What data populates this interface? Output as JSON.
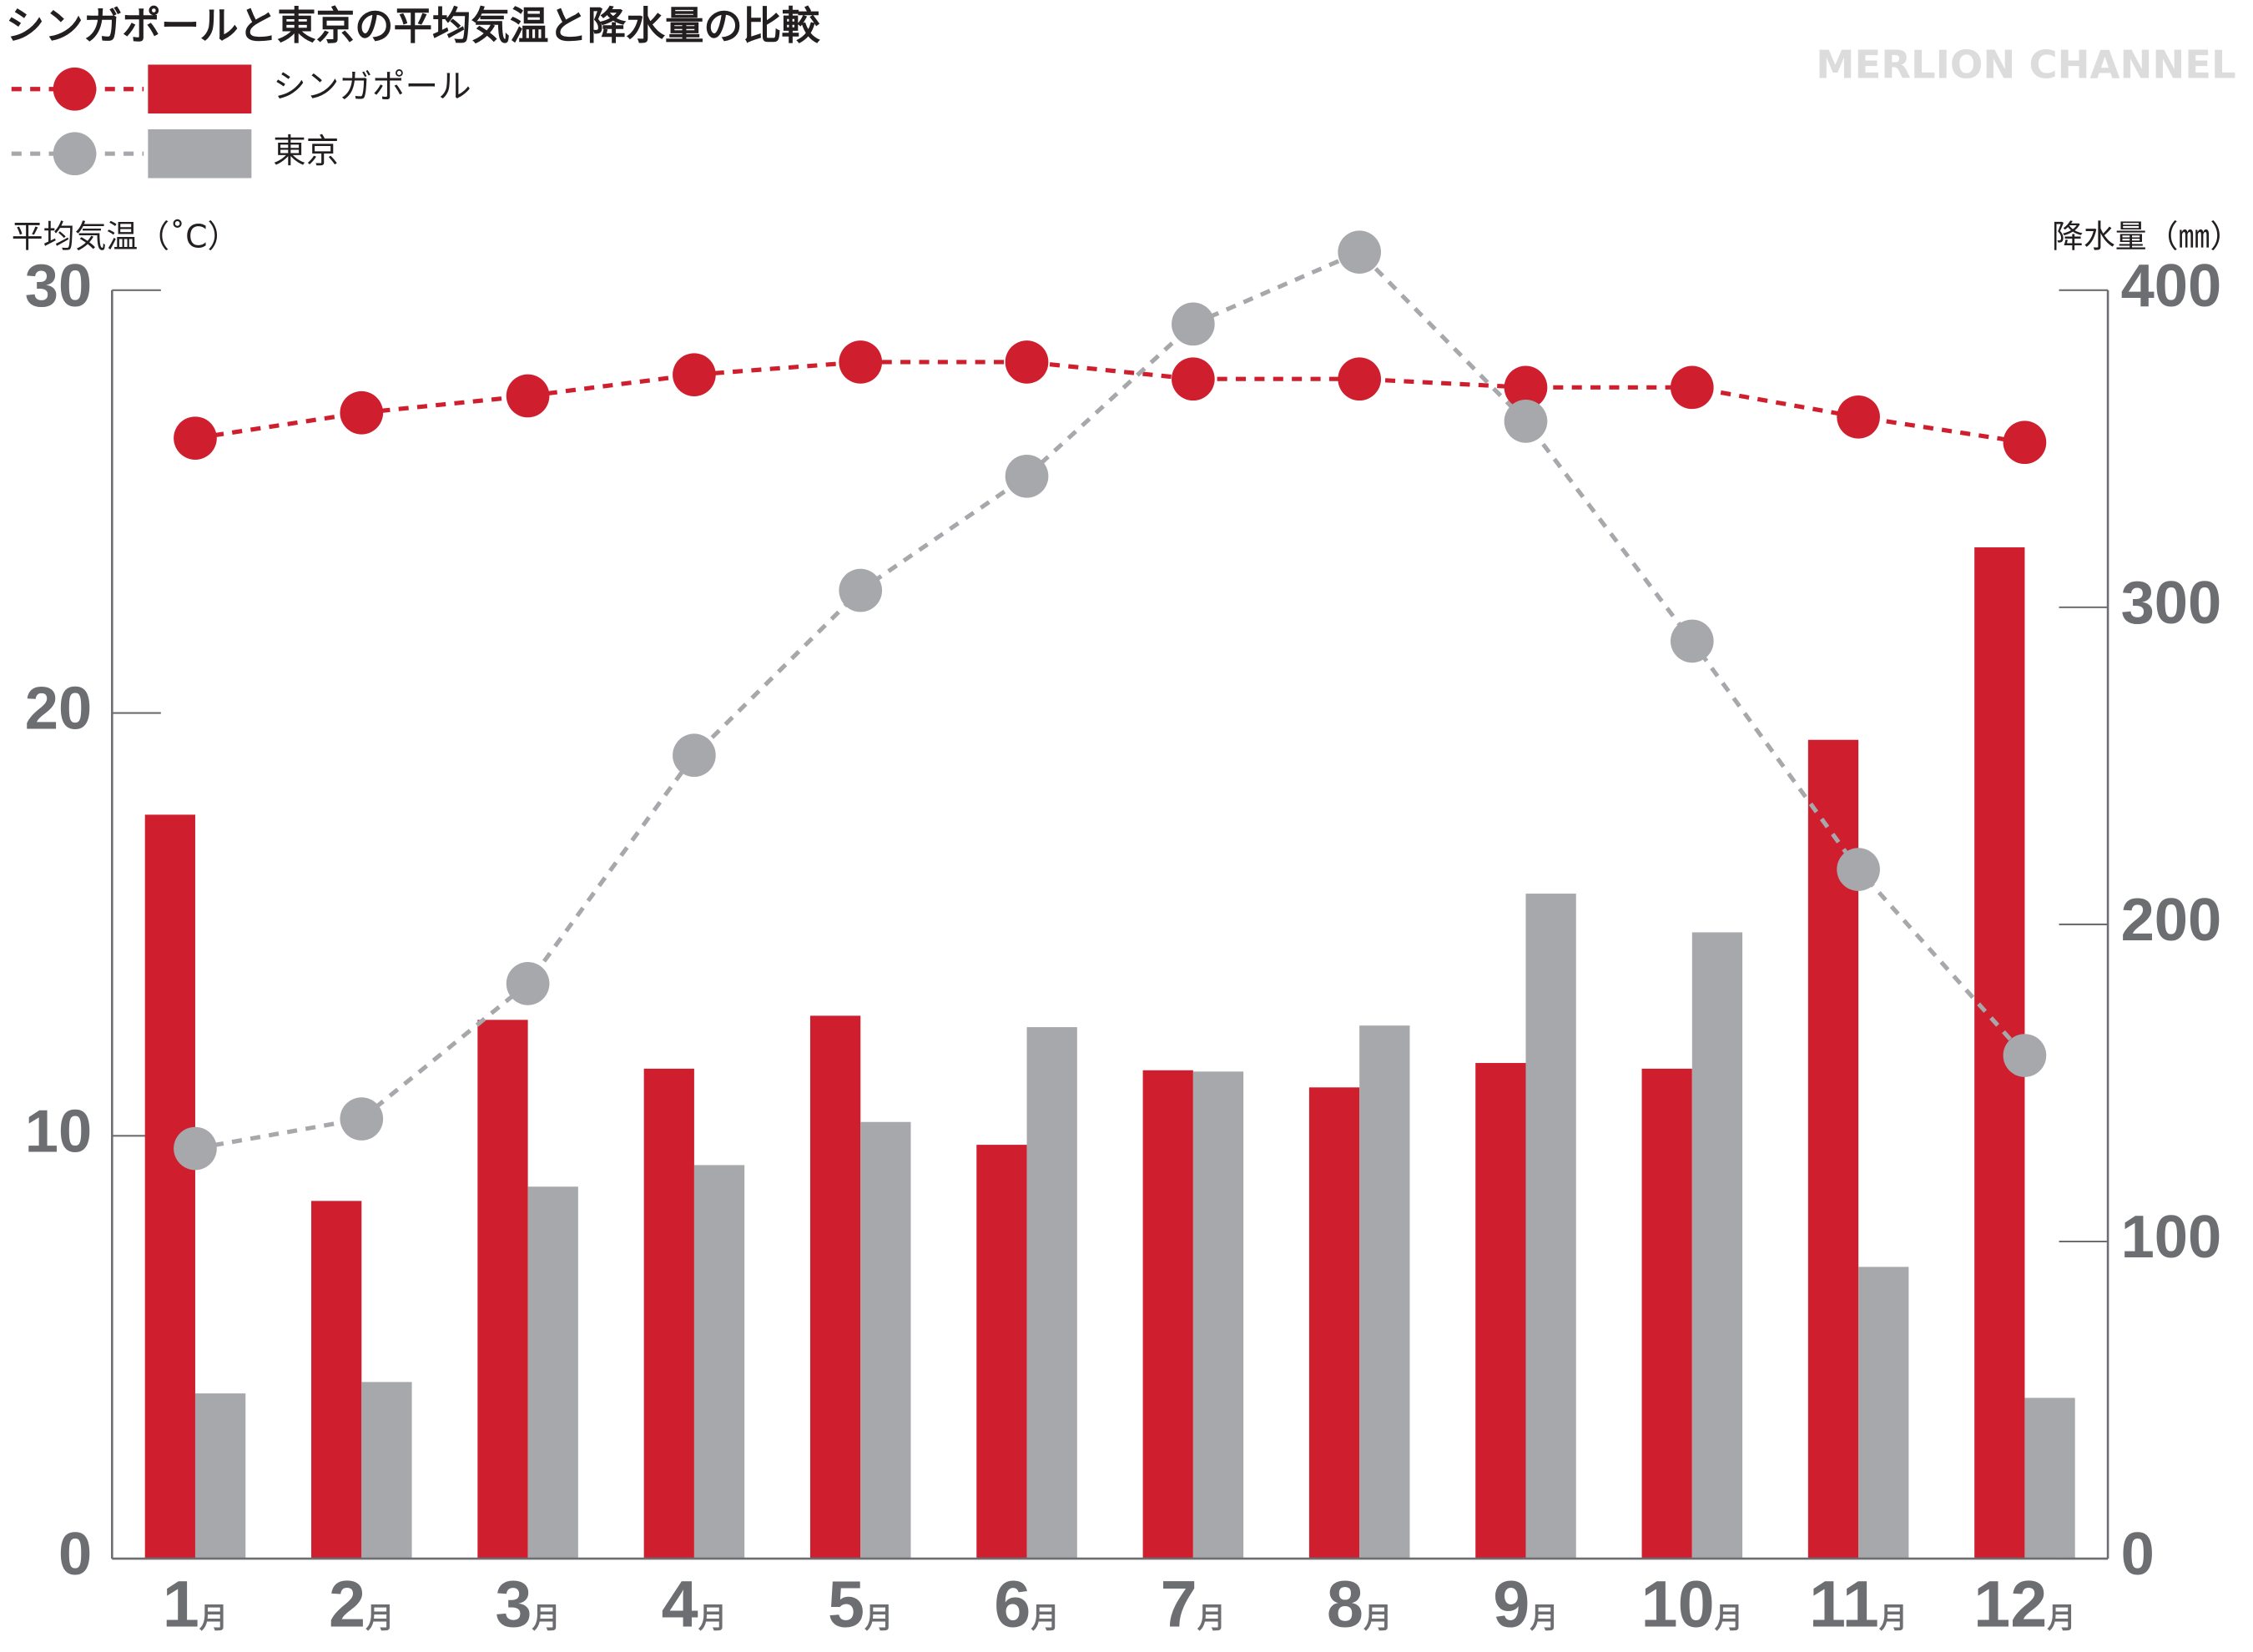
{
  "chart_data": {
    "type": "combo",
    "title": "シンガポールと東京の平均気温と降水量の比較",
    "watermark": "MERLION CHANNEL",
    "y_label": "平均気温（˚C）",
    "y2_label": "降水量（㎜）",
    "categories": [
      "1月",
      "2月",
      "3月",
      "4月",
      "5月",
      "6月",
      "7月",
      "8月",
      "9月",
      "10月",
      "11月",
      "12月"
    ],
    "ylim": [
      0,
      30
    ],
    "yticks": [
      0,
      10,
      20,
      30
    ],
    "y2lim": [
      0,
      400
    ],
    "y2ticks": [
      0,
      100,
      200,
      300,
      400
    ],
    "legend": "top-left",
    "series": [
      {
        "name": "シンガポール",
        "type": "line",
        "axis": "y",
        "color": "#cf1f2e",
        "values": [
          26.5,
          27.1,
          27.5,
          28.0,
          28.3,
          28.3,
          27.9,
          27.9,
          27.7,
          27.7,
          27.0,
          26.4
        ]
      },
      {
        "name": "東京",
        "type": "line",
        "axis": "y",
        "color": "#a7a8ab",
        "values": [
          9.7,
          10.4,
          13.6,
          19.0,
          22.9,
          25.6,
          29.2,
          30.9,
          26.9,
          21.7,
          16.3,
          11.9
        ]
      },
      {
        "name": "シンガポール",
        "type": "bar",
        "axis": "y2",
        "color": "#cf1f2e",
        "values": [
          234.6,
          112.8,
          169.9,
          154.5,
          171.2,
          130.5,
          154.0,
          148.6,
          156.3,
          154.5,
          258.2,
          318.9
        ]
      },
      {
        "name": "東京",
        "type": "bar",
        "axis": "y2",
        "color": "#a7a8ab",
        "values": [
          52.1,
          55.7,
          117.3,
          124.1,
          137.7,
          167.6,
          153.6,
          168.1,
          209.7,
          197.5,
          92.0,
          50.7
        ]
      }
    ]
  }
}
